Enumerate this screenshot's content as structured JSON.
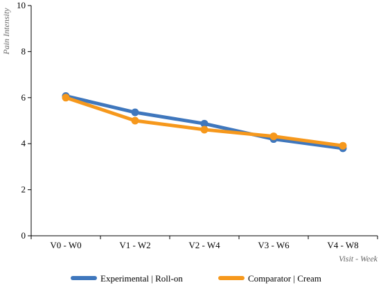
{
  "chart_data": {
    "type": "line",
    "title": "",
    "xlabel": "Visit - Week",
    "ylabel": "Pain Intensity",
    "categories": [
      "V0 - W0",
      "V1 - W2",
      "V2 - W4",
      "V3 - W6",
      "V4 - W8"
    ],
    "ylim": [
      0,
      10
    ],
    "yticks": [
      0,
      2,
      4,
      6,
      8,
      10
    ],
    "grid": false,
    "legend_position": "bottom",
    "series": [
      {
        "name": "Experimental | Roll-on",
        "color": "#3f77bd",
        "values": [
          6.07,
          5.36,
          4.87,
          4.2,
          3.8
        ]
      },
      {
        "name": "Comparator | Cream",
        "color": "#f6981c",
        "values": [
          6.0,
          5.0,
          4.61,
          4.32,
          3.91
        ]
      }
    ]
  }
}
